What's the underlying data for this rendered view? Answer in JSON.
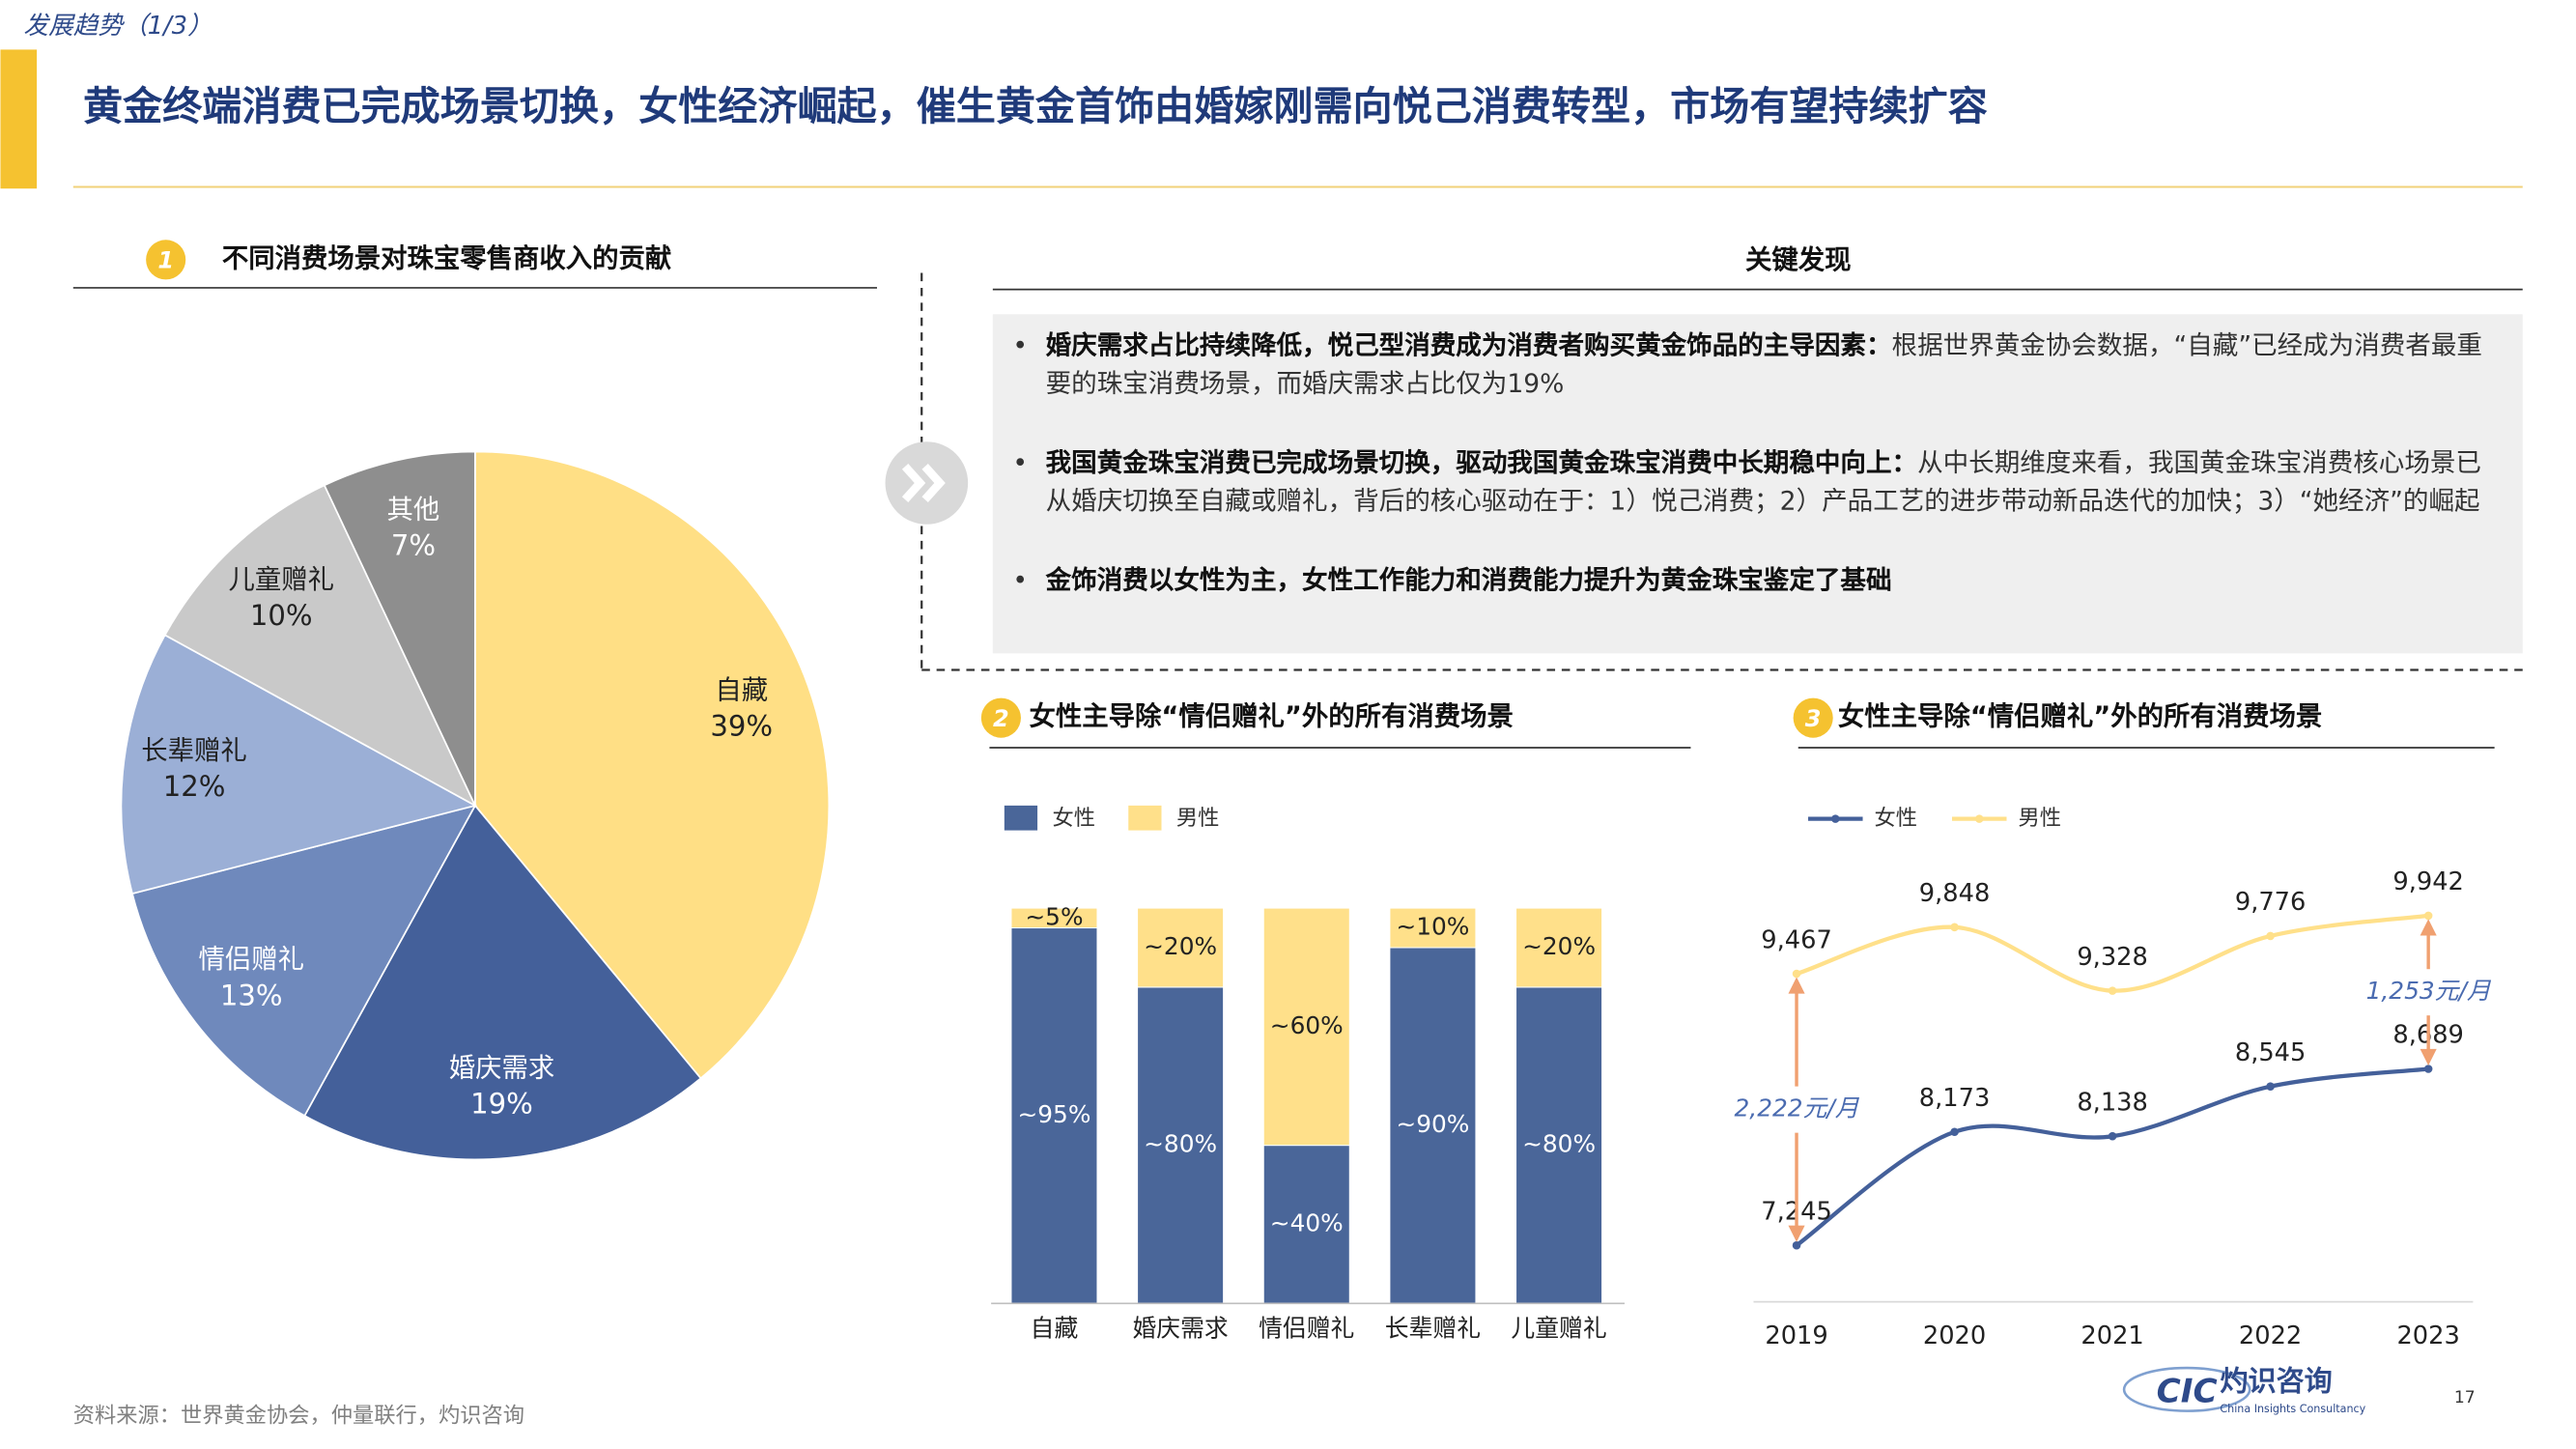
{
  "header": {
    "tag": "发展趋势（1/3）",
    "title": "黄金终端消费已完成场景切换，女性经济崛起，催生黄金首饰由婚嫁刚需向悦己消费转型，市场有望持续扩容"
  },
  "key_findings": {
    "title": "关键发现",
    "bullets": [
      {
        "bold": "婚庆需求占比持续降低，悦己型消费成为消费者购买黄金饰品的主导因素：",
        "text": "根据世界黄金协会数据，“自藏”已经成为消费者最重要的珠宝消费场景，而婚庆需求占比仅为19%"
      },
      {
        "bold": "我国黄金珠宝消费已完成场景切换，驱动我国黄金珠宝消费中长期稳中向上：",
        "text": "从中长期维度来看，我国黄金珠宝消费核心场景已从婚庆切换至自藏或赠礼，背后的核心驱动在于：1）悦己消费；2）产品工艺的进步带动新品迭代的加快；3）“她经济”的崛起"
      },
      {
        "bold": "金饰消费以女性为主，女性工作能力和消费能力提升为黄金珠宝鉴定了基础",
        "text": ""
      }
    ]
  },
  "chart_data": [
    {
      "type": "pie",
      "badge": "1",
      "title": "不同消费场景对珠宝零售商收入的贡献",
      "categories": [
        "自藏",
        "婚庆需求",
        "情侣赠礼",
        "长辈赠礼",
        "儿童赠礼",
        "其他"
      ],
      "values": [
        39,
        19,
        13,
        12,
        10,
        7
      ],
      "value_labels": [
        "39%",
        "19%",
        "13%",
        "12%",
        "10%",
        "7%"
      ],
      "colors": [
        "#FFDF85",
        "#44609A",
        "#6F89BC",
        "#9BAFD6",
        "#C9C9C9",
        "#8E8E8E"
      ]
    },
    {
      "type": "bar",
      "badge": "2",
      "title": "女性主导除“情侣赠礼”外的所有消费场景",
      "stacked": true,
      "categories": [
        "自藏",
        "婚庆需求",
        "情侣赠礼",
        "长辈赠礼",
        "儿童赠礼"
      ],
      "ylim": [
        0,
        100
      ],
      "series": [
        {
          "name": "女性",
          "color": "#4A6699",
          "values": [
            95,
            80,
            40,
            90,
            80
          ],
          "value_labels": [
            "~95%",
            "~80%",
            "~40%",
            "~90%",
            "~80%"
          ]
        },
        {
          "name": "男性",
          "color": "#FFE08A",
          "values": [
            5,
            20,
            60,
            10,
            20
          ],
          "value_labels": [
            "~5%",
            "~20%",
            "~60%",
            "~10%",
            "~20%"
          ]
        }
      ]
    },
    {
      "type": "line",
      "badge": "3",
      "title": "女性主导除“情侣赠礼”外的所有消费场景",
      "categories": [
        "2019",
        "2020",
        "2021",
        "2022",
        "2023"
      ],
      "ylim": [
        7000,
        10000
      ],
      "series": [
        {
          "name": "女性",
          "color": "#44609A",
          "values": [
            7245,
            8173,
            8138,
            8545,
            8689
          ],
          "value_labels": [
            "7,245",
            "8,173",
            "8,138",
            "8,545",
            "8,689"
          ]
        },
        {
          "name": "男性",
          "color": "#FFE08A",
          "values": [
            9467,
            9848,
            9328,
            9776,
            9942
          ],
          "value_labels": [
            "9,467",
            "9,848",
            "9,328",
            "9,776",
            "9,942"
          ]
        }
      ],
      "annotations": [
        "2,222元/月",
        "1,253元/月"
      ]
    }
  ],
  "footer": {
    "source": "资料来源：世界黄金协会，仲量联行，灼识咨询",
    "page": "17",
    "logo_mark": "CIC",
    "logo_name": "灼识咨询",
    "logo_sub": "China Insights Consultancy"
  }
}
